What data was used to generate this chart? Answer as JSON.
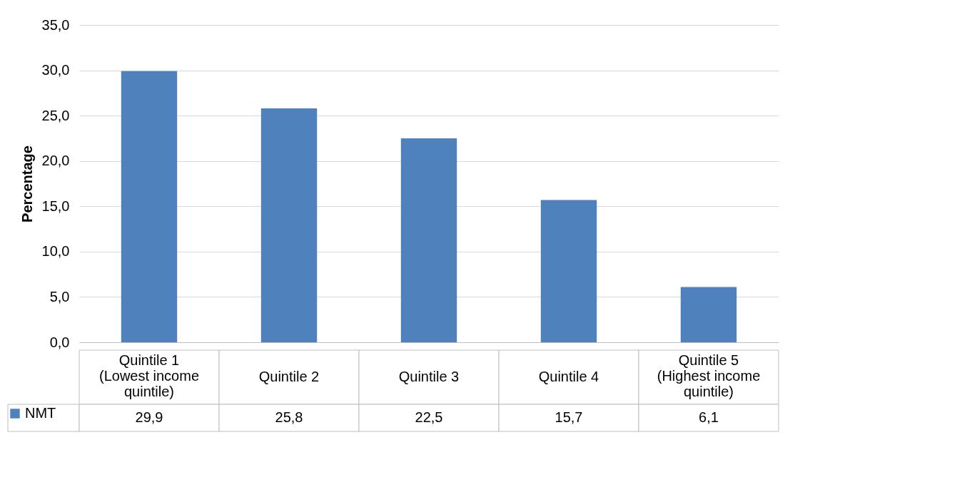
{
  "chart_data": {
    "type": "bar",
    "ylabel": "Percentage",
    "categories": [
      "Quintile 1 (Lowest income quintile)",
      "Quintile 2",
      "Quintile 3",
      "Quintile 4",
      "Quintile 5 (Highest income quintile)"
    ],
    "series": [
      {
        "name": "NMT",
        "color": "#4f81bd",
        "values": [
          29.9,
          25.8,
          22.5,
          15.7,
          6.1
        ],
        "value_labels": [
          "29,9",
          "25,8",
          "22,5",
          "15,7",
          "6,1"
        ]
      }
    ],
    "ylim": [
      0,
      35
    ],
    "yticks": [
      {
        "value": 0,
        "label": "0,0"
      },
      {
        "value": 5,
        "label": "5,0"
      },
      {
        "value": 10,
        "label": "10,0"
      },
      {
        "value": 15,
        "label": "15,0"
      },
      {
        "value": 20,
        "label": "20,0"
      },
      {
        "value": 25,
        "label": "25,0"
      },
      {
        "value": 30,
        "label": "30,0"
      },
      {
        "value": 35,
        "label": "35,0"
      }
    ],
    "grid": "y",
    "legend": "bottom"
  }
}
